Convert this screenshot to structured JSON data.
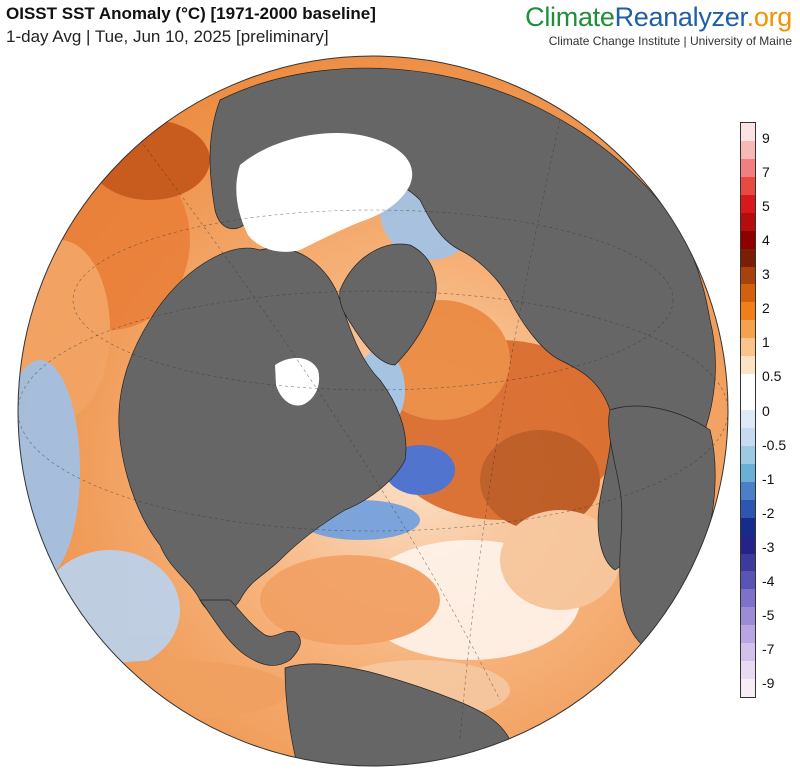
{
  "header": {
    "title": "OISST SST Anomaly (°C) [1971-2000 baseline]",
    "subtitle": "1-day Avg | Tue, Jun 10, 2025 [preliminary]"
  },
  "brand": {
    "part1": "Climate",
    "part2": "Reanalyzer",
    "part3": ".org",
    "tagline": "Climate Change Institute | University of Maine",
    "colors": {
      "part1": "#1f8f3a",
      "part2": "#1f5fa8",
      "part3": "#f39200"
    }
  },
  "map": {
    "projection": "orthographic",
    "center": "North Atlantic",
    "land_color": "#666666",
    "ice_color": "#ffffff",
    "ocean_overall": "warm anomalies",
    "warm_color": "#f08a3c",
    "cool_color": "#8fb8e8"
  },
  "colorbar": {
    "labels": [
      "9",
      "7",
      "5",
      "4",
      "3",
      "2",
      "1",
      "0.5",
      "0",
      "-0.5",
      "-1",
      "-2",
      "-3",
      "-4",
      "-5",
      "-7",
      "-9"
    ],
    "colors": [
      "#fbe3e3",
      "#f6b9b3",
      "#f08080",
      "#e94a3f",
      "#d7191c",
      "#b30d0d",
      "#8c0000",
      "#7a1e06",
      "#a8420c",
      "#d3600f",
      "#f07f18",
      "#f5a24f",
      "#fac48c",
      "#fde2c4",
      "#ffffff",
      "#ffffff",
      "#deebf7",
      "#c6dbef",
      "#9ecae1",
      "#6baed6",
      "#4d7fc8",
      "#2c56b0",
      "#152c8c",
      "#24238a",
      "#3c3a9c",
      "#5a55b5",
      "#7d72c8",
      "#9c8cd6",
      "#b9a6e0",
      "#d2c2ea",
      "#e6dbf2",
      "#f6edf6"
    ]
  }
}
